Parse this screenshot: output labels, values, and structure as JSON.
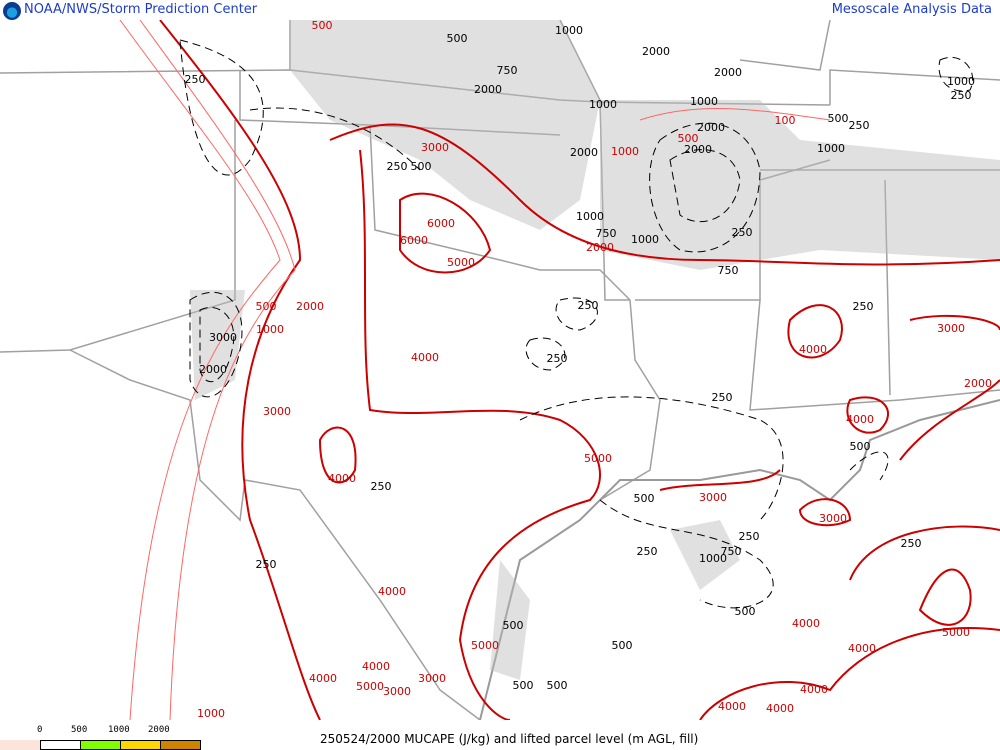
{
  "header": {
    "title": "NOAA/NWS/Storm Prediction Center",
    "product_link": "Mesoscale Analysis Data",
    "logo": "noaa-logo"
  },
  "legend": {
    "ticks": [
      "0",
      "500",
      "1000",
      "2000"
    ],
    "colors": [
      "#fbe4dc",
      "#ffffff",
      "#80ff00",
      "#ffd700",
      "#cd8500"
    ]
  },
  "caption": "250524/2000 MUCAPE (J/kg) and lifted parcel level (m AGL, fill)",
  "colors": {
    "mucape_contour": "#cc0000",
    "lpl_contour": "#000000",
    "borders": "#a0a0a0"
  },
  "red_labels": [
    "3000",
    "6000",
    "6000",
    "5000",
    "4000",
    "2000",
    "1000",
    "3000",
    "4000",
    "5000",
    "4000",
    "5000",
    "4000",
    "3000",
    "4000",
    "5000",
    "3000",
    "1000",
    "1000",
    "500",
    "100",
    "2000",
    "4000",
    "4000",
    "3000",
    "3000",
    "3000",
    "2000",
    "4000",
    "4000",
    "5000",
    "4000",
    "4000",
    "4000",
    "500",
    "500"
  ],
  "black_labels": [
    "250",
    "500",
    "750",
    "2000",
    "1000",
    "2000",
    "2000",
    "1000",
    "1000",
    "2000",
    "2000",
    "2000",
    "250",
    "500",
    "1000",
    "750",
    "1000",
    "250",
    "750",
    "500",
    "250",
    "1000",
    "250",
    "250",
    "250",
    "250",
    "500",
    "250",
    "500",
    "250",
    "750",
    "1000",
    "250",
    "250",
    "500",
    "500",
    "500",
    "500",
    "500",
    "250",
    "3000",
    "2000",
    "1000",
    "250"
  ]
}
